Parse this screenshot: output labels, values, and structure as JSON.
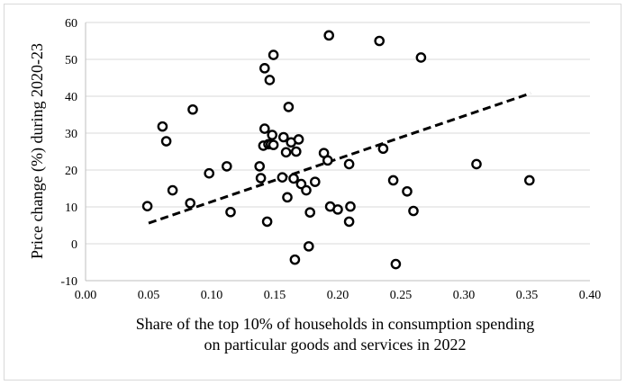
{
  "chart_data": {
    "type": "scatter",
    "title": "",
    "ylabel": "Price change (%) during 2020-23",
    "xlabel_lines": [
      "Share of the top 10% of households in consumption spending",
      "on particular goods and services in 2022"
    ],
    "xlim": [
      0,
      0.4
    ],
    "ylim": [
      -10,
      60
    ],
    "x_ticks": [
      "0.00",
      "0.05",
      "0.10",
      "0.15",
      "0.20",
      "0.25",
      "0.30",
      "0.35",
      "0.40"
    ],
    "y_ticks": [
      "-10",
      "0",
      "10",
      "20",
      "30",
      "40",
      "50",
      "60"
    ],
    "grid": "horizontal",
    "legend": "none",
    "trendline": {
      "style": "dashed",
      "x": [
        0.05,
        0.353
      ],
      "y": [
        5.6,
        40.8
      ]
    },
    "points": [
      {
        "x": 0.049,
        "y": 10.2
      },
      {
        "x": 0.061,
        "y": 31.8
      },
      {
        "x": 0.064,
        "y": 27.8
      },
      {
        "x": 0.069,
        "y": 14.5
      },
      {
        "x": 0.083,
        "y": 11.0
      },
      {
        "x": 0.085,
        "y": 36.4
      },
      {
        "x": 0.098,
        "y": 19.1
      },
      {
        "x": 0.112,
        "y": 21.0
      },
      {
        "x": 0.115,
        "y": 8.6
      },
      {
        "x": 0.138,
        "y": 21.0
      },
      {
        "x": 0.139,
        "y": 17.8
      },
      {
        "x": 0.141,
        "y": 26.6
      },
      {
        "x": 0.142,
        "y": 31.2
      },
      {
        "x": 0.142,
        "y": 47.6
      },
      {
        "x": 0.144,
        "y": 6.0
      },
      {
        "x": 0.145,
        "y": 27.0
      },
      {
        "x": 0.146,
        "y": 44.4
      },
      {
        "x": 0.147,
        "y": 27.0
      },
      {
        "x": 0.148,
        "y": 29.5
      },
      {
        "x": 0.149,
        "y": 26.8
      },
      {
        "x": 0.149,
        "y": 51.2
      },
      {
        "x": 0.156,
        "y": 18.0
      },
      {
        "x": 0.157,
        "y": 28.9
      },
      {
        "x": 0.159,
        "y": 24.8
      },
      {
        "x": 0.16,
        "y": 12.6
      },
      {
        "x": 0.161,
        "y": 37.1
      },
      {
        "x": 0.163,
        "y": 27.5
      },
      {
        "x": 0.165,
        "y": 17.7
      },
      {
        "x": 0.166,
        "y": -4.3
      },
      {
        "x": 0.167,
        "y": 25.0
      },
      {
        "x": 0.169,
        "y": 28.3
      },
      {
        "x": 0.171,
        "y": 16.2
      },
      {
        "x": 0.175,
        "y": 14.5
      },
      {
        "x": 0.177,
        "y": -0.7
      },
      {
        "x": 0.178,
        "y": 8.5
      },
      {
        "x": 0.182,
        "y": 16.8
      },
      {
        "x": 0.189,
        "y": 24.6
      },
      {
        "x": 0.192,
        "y": 22.6
      },
      {
        "x": 0.193,
        "y": 56.5
      },
      {
        "x": 0.194,
        "y": 10.1
      },
      {
        "x": 0.2,
        "y": 9.3
      },
      {
        "x": 0.209,
        "y": 21.6
      },
      {
        "x": 0.209,
        "y": 6.0
      },
      {
        "x": 0.21,
        "y": 10.1
      },
      {
        "x": 0.233,
        "y": 55.0
      },
      {
        "x": 0.236,
        "y": 25.8
      },
      {
        "x": 0.244,
        "y": 17.2
      },
      {
        "x": 0.246,
        "y": -5.5
      },
      {
        "x": 0.255,
        "y": 14.2
      },
      {
        "x": 0.26,
        "y": 8.9
      },
      {
        "x": 0.266,
        "y": 50.5
      },
      {
        "x": 0.31,
        "y": 21.6
      },
      {
        "x": 0.352,
        "y": 17.2
      }
    ]
  }
}
